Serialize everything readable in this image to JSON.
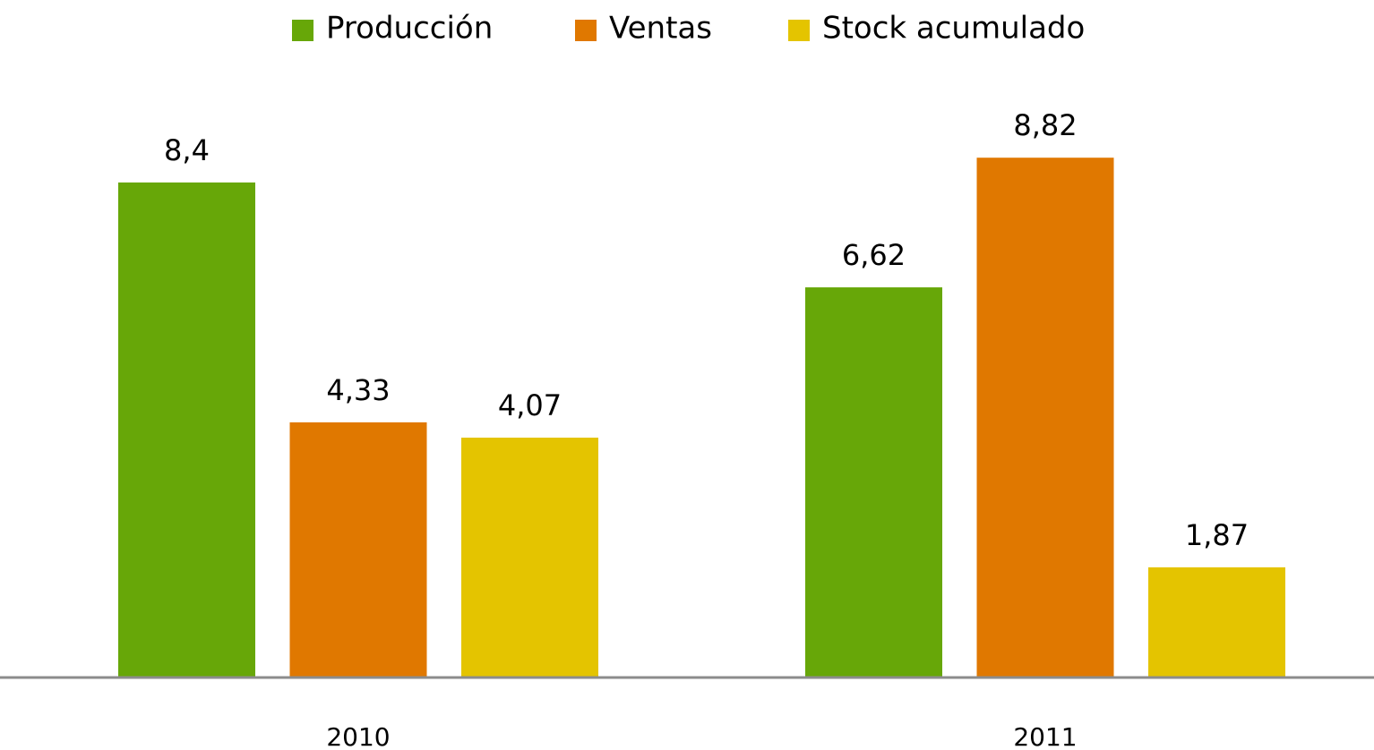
{
  "chart_data": {
    "type": "bar",
    "categories": [
      "2010",
      "2011"
    ],
    "series": [
      {
        "name": "Producción",
        "color": "#67a708",
        "values": [
          8.4,
          6.62
        ],
        "value_labels": [
          "8,4",
          "6,62"
        ]
      },
      {
        "name": "Ventas",
        "color": "#e07800",
        "values": [
          4.33,
          8.82
        ],
        "value_labels": [
          "4,33",
          "8,82"
        ]
      },
      {
        "name": "Stock acumulado",
        "color": "#e4c400",
        "values": [
          4.07,
          1.87
        ],
        "value_labels": [
          "4,07",
          "1,87"
        ]
      }
    ],
    "legend": "top"
  }
}
